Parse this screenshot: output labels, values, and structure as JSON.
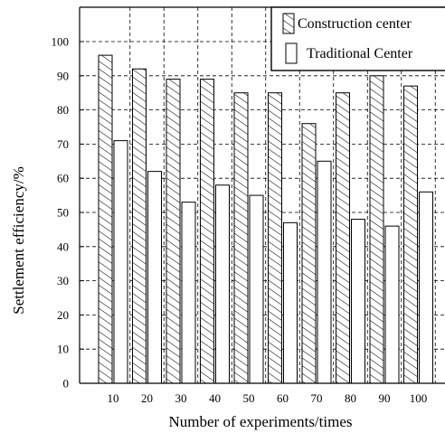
{
  "chart_data": {
    "type": "bar",
    "title": "",
    "xlabel": "Number of experiments/times",
    "ylabel": "Settlement efficiency/%",
    "categories": [
      "10",
      "20",
      "30",
      "40",
      "50",
      "60",
      "70",
      "80",
      "90",
      "100"
    ],
    "ylim": [
      0,
      100
    ],
    "yticks": [
      0,
      10,
      20,
      30,
      40,
      50,
      60,
      70,
      80,
      90,
      100
    ],
    "grid": true,
    "legend_position": "top-right",
    "series": [
      {
        "name": "Construction center",
        "pattern": "diagonal-hatch",
        "color": "#000000",
        "values": [
          96,
          92,
          89,
          89,
          85,
          85,
          76,
          85,
          90,
          87
        ]
      },
      {
        "name": "Traditional Center",
        "pattern": "none",
        "color": "#000000",
        "values": [
          71,
          62,
          53,
          58,
          55,
          47,
          65,
          48,
          46,
          56
        ]
      }
    ]
  }
}
